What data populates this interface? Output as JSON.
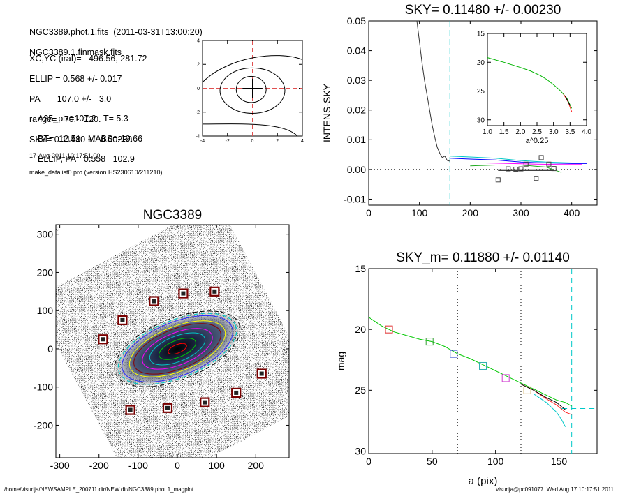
{
  "info": {
    "line1": "NGC3389.phot.1.fits  (2011-03-31T13:00:20)",
    "line2": "NGC3389.1.finmask.fits",
    "xcyc": "XC,YC (iraf)=   496.56, 281.72",
    "ellip": "ELLIP = 0.568 +/- 0.017",
    "pa": "PA    = 107.0 +/-   3.0",
    "range": "range=   70.-  120.",
    "sky": "SKY= 0.11480 +/- 0.00230",
    "a25": "A25_pix=107.2   T= 5.3",
    "bt": "BT=  12.51   MABS=-19.66",
    "ellip_pa": "ELLIP, PA= 0.558   102.9",
    "date": "17-Aug-2011 10:17:51.00",
    "program": "make_datalist0.pro (version HS230610/211210)"
  },
  "footer": {
    "left": "/home/visurija/NEWSAMPLE_200711.dir/NEW.dir/NGC3389.phot.1_magplot",
    "right": "visurija@pc091077  Wed Aug 17 10:17:51 2011"
  },
  "chart_data": [
    {
      "id": "contour",
      "type": "contour",
      "xlim": [
        -4,
        4
      ],
      "ylim": [
        -4,
        4
      ],
      "xticks": [
        "-4",
        "-2",
        "0",
        "2",
        "4"
      ],
      "yticks": [
        "-4",
        "-2",
        "0",
        "2",
        "4"
      ],
      "crosshair_color": "#e05050"
    },
    {
      "id": "sky",
      "type": "line",
      "title": "SKY= 0.11480 +/- 0.00230",
      "xlabel": "",
      "ylabel": "INTENS-SKY",
      "xlim": [
        0,
        450
      ],
      "ylim": [
        -0.012,
        0.05
      ],
      "xticks": [
        "0",
        "100",
        "200",
        "300",
        "400"
      ],
      "yticks": [
        "-0.01",
        "0.00",
        "0.01",
        "0.02",
        "0.03",
        "0.04",
        "0.05"
      ],
      "sky_radius": 160,
      "profile": {
        "x": [
          95,
          100,
          105,
          110,
          115,
          120,
          125,
          130,
          135,
          140,
          145,
          150,
          155,
          160
        ],
        "y": [
          0.05,
          0.043,
          0.036,
          0.03,
          0.025,
          0.02,
          0.015,
          0.011,
          0.0075,
          0.0055,
          0.004,
          0.0045,
          0.003,
          0.0028
        ]
      },
      "sky_series": [
        {
          "color": "#00c8c8",
          "x": [
            160,
            200,
            250,
            300,
            350,
            400,
            430
          ],
          "y": [
            0.0045,
            0.0042,
            0.0038,
            0.003,
            0.0025,
            0.0022,
            0.0022
          ]
        },
        {
          "color": "#0000ff",
          "x": [
            160,
            200,
            250,
            300,
            350,
            400,
            430
          ],
          "y": [
            0.0038,
            0.0035,
            0.0032,
            0.0025,
            0.0022,
            0.002,
            0.002
          ]
        },
        {
          "color": "#ff00ff",
          "x": [
            230,
            280,
            330,
            380,
            420
          ],
          "y": [
            0.0022,
            0.002,
            0.0018,
            0.0017,
            0.0017
          ]
        },
        {
          "color": "#22aa22",
          "x": [
            200,
            250,
            300,
            350,
            380
          ],
          "y": [
            0.0012,
            0.0015,
            0.0015,
            0.0008,
            -0.001
          ]
        }
      ],
      "sky_points": {
        "x": [
          255,
          275,
          290,
          300,
          310,
          330,
          340,
          355,
          365
        ],
        "y": [
          -0.0035,
          0.0002,
          0.0001,
          0.0002,
          0.0018,
          -0.003,
          0.004,
          0.0018,
          0.0003
        ]
      },
      "mean_line": {
        "x": [
          255,
          365
        ],
        "y": [
          -0.0002,
          -0.0002
        ]
      },
      "inset": {
        "xlabel": "a^0.25",
        "xlim": [
          1.0,
          4.0
        ],
        "ylim": [
          15,
          31
        ],
        "xticks": [
          "1.0",
          "1.5",
          "2.0",
          "2.5",
          "3.0",
          "3.5",
          "4.0"
        ],
        "yticks": [
          "15",
          "20",
          "25",
          "30"
        ],
        "curve": {
          "x": [
            1.0,
            1.5,
            2.0,
            2.3,
            2.6,
            2.8,
            3.0,
            3.2,
            3.4,
            3.55
          ],
          "y": [
            19.2,
            20.0,
            20.9,
            21.5,
            22.3,
            23.0,
            23.9,
            24.9,
            26.2,
            28.0
          ]
        }
      }
    },
    {
      "id": "image",
      "type": "image",
      "title": "NGC3389",
      "xlim": [
        -310,
        285
      ],
      "ylim": [
        -285,
        325
      ],
      "xticks": [
        "-300",
        "-200",
        "-100",
        "0",
        "100",
        "200"
      ],
      "yticks": [
        "-200",
        "-100",
        "0",
        "100",
        "200",
        "300"
      ],
      "star_masks": {
        "x": [
          -190,
          -140,
          -60,
          15,
          95,
          -120,
          -25,
          70,
          150,
          215
        ],
        "y": [
          25,
          75,
          125,
          145,
          150,
          -160,
          -155,
          -140,
          -115,
          -65
        ]
      },
      "isophotes": [
        {
          "a": 150,
          "b": 70,
          "color": "#2828ff"
        },
        {
          "a": 130,
          "b": 58,
          "color": "#ffff00"
        },
        {
          "a": 118,
          "b": 52,
          "color": "#8b0000"
        },
        {
          "a": 95,
          "b": 42,
          "color": "#ff00ff"
        },
        {
          "a": 75,
          "b": 33,
          "color": "#00c8c8"
        },
        {
          "a": 50,
          "b": 22,
          "color": "#00c800"
        },
        {
          "a": 25,
          "b": 11,
          "color": "#ff0000"
        }
      ]
    },
    {
      "id": "mag",
      "type": "line",
      "title": "SKY_m=  0.11880 +/- 0.01140",
      "xlabel": "a (pix)",
      "ylabel": "mag",
      "xlim": [
        0,
        180
      ],
      "ylim": [
        30.2,
        15
      ],
      "xticks": [
        "0",
        "50",
        "100",
        "150"
      ],
      "yticks": [
        "15",
        "20",
        "25",
        "30"
      ],
      "range_lines": [
        70,
        120
      ],
      "sky_radius": 160,
      "sky_level": 26.5,
      "series": [
        {
          "color": "#00c800",
          "x": [
            0,
            10,
            20,
            30,
            40,
            50,
            60,
            70,
            80,
            90,
            100,
            110,
            120,
            130,
            140,
            148,
            155,
            160
          ],
          "y": [
            19.0,
            19.7,
            20.2,
            20.5,
            20.8,
            21.0,
            21.4,
            22.0,
            22.4,
            22.9,
            23.4,
            23.9,
            24.4,
            24.9,
            25.4,
            25.8,
            26.0,
            26.3
          ]
        },
        {
          "color": "#ff2020",
          "x": [
            120,
            130,
            140,
            148,
            155,
            160
          ],
          "y": [
            24.5,
            25.0,
            25.7,
            26.2,
            26.8,
            27.0
          ]
        },
        {
          "color": "#000000",
          "x": [
            120,
            130,
            140,
            148,
            155
          ],
          "y": [
            24.5,
            25.0,
            25.6,
            26.0,
            26.6
          ]
        },
        {
          "color": "#00c8c8",
          "x": [
            130,
            140,
            148,
            152,
            155
          ],
          "y": [
            25.3,
            26.0,
            26.8,
            27.4,
            28.0
          ]
        }
      ],
      "markers": [
        {
          "x": 16,
          "y": 20.0,
          "color": "#e03030"
        },
        {
          "x": 48,
          "y": 21.0,
          "color": "#30a030"
        },
        {
          "x": 67,
          "y": 22.0,
          "color": "#2040d0"
        },
        {
          "x": 90,
          "y": 23.0,
          "color": "#30b0b0"
        },
        {
          "x": 108,
          "y": 24.0,
          "color": "#d040d0"
        },
        {
          "x": 125,
          "y": 25.0,
          "color": "#d0b060"
        }
      ]
    }
  ]
}
